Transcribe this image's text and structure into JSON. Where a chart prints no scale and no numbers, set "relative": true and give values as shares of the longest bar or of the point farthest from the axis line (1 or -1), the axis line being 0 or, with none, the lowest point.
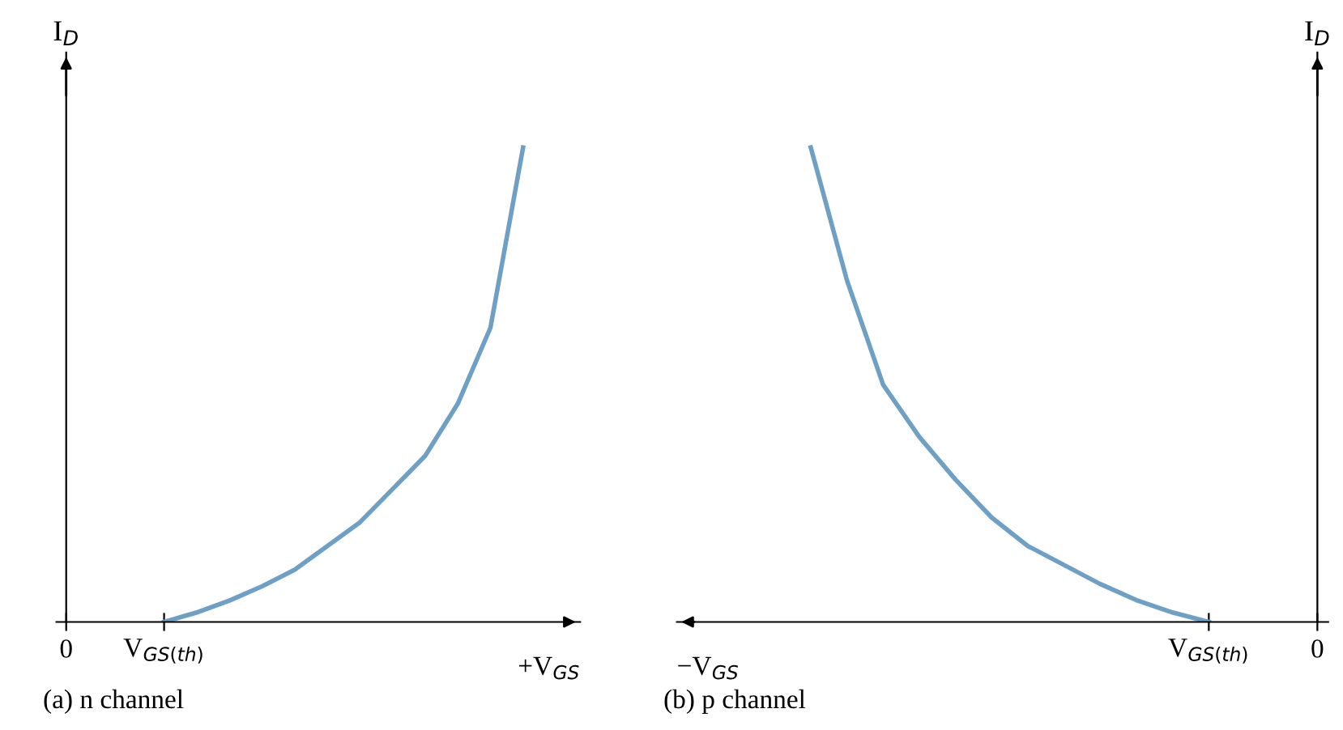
{
  "chart_data": [
    {
      "type": "line",
      "relative": true,
      "ylabel": "I$_{D}$",
      "xlabel": "+V$_{GS}$",
      "categories": [
        "0",
        null,
        null,
        "V$_{GS(th)}$",
        null,
        null,
        null,
        null,
        null,
        null,
        null,
        null,
        null,
        null,
        null
      ],
      "series": [
        {
          "color": "#6e9fc4",
          "values": [
            null,
            null,
            null,
            0,
            0.02,
            0.045,
            0.075,
            0.11,
            0.16,
            0.21,
            0.28,
            0.35,
            0.46,
            0.62,
            1
          ]
        }
      ],
      "annotations": [
        "(a) n channel"
      ]
    },
    {
      "type": "line",
      "relative": true,
      "ylabel": "I$_{D}$",
      "xlabel": "−V$_{GS}$",
      "categories": [
        null,
        null,
        null,
        null,
        null,
        null,
        null,
        null,
        null,
        null,
        null,
        "V$_{GS(th)}$",
        null,
        null,
        "0"
      ],
      "series": [
        {
          "color": "#6e9fc4",
          "values": [
            1,
            0.72,
            0.5,
            0.39,
            0.3,
            0.22,
            0.16,
            0.12,
            0.08,
            0.046,
            0.02,
            0,
            null,
            null,
            null
          ]
        }
      ],
      "annotations": [
        "(b) p channel"
      ]
    }
  ]
}
